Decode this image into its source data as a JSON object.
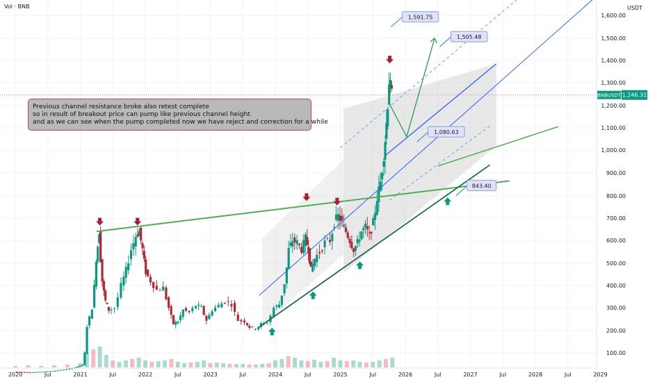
{
  "header": {
    "volume_label": "Vol · BNB",
    "currency": "USDT"
  },
  "price_badge": {
    "symbol": "BNBUSDT",
    "value": "1,246.31",
    "color": "#089981"
  },
  "annotation": {
    "lines": [
      "Previous channel resistance broke also retest complete",
      "so in result of breakout price can pump like previous channel height",
      "and as we can see when the pump completed now we have reject and correction for a while"
    ]
  },
  "level_labels": [
    {
      "text": "1,591.75",
      "x": 2025.95,
      "y": 1591.75
    },
    {
      "text": "1,505.48",
      "x": 2026.7,
      "y": 1505.48
    },
    {
      "text": "1,080.63",
      "x": 2026.35,
      "y": 1080.63
    },
    {
      "text": "843.40",
      "x": 2026.95,
      "y": 843.4
    }
  ],
  "chart_data": {
    "type": "candlestick",
    "y_scale": "log",
    "y_ticks": [
      "100.00",
      "200.00",
      "300.00",
      "400.00",
      "500.00",
      "600.00",
      "700.00",
      "800.00",
      "900.00",
      "1,000.00",
      "1,100.00",
      "1,200.00",
      "1,300.00",
      "1,400.00",
      "1,500.00",
      "1,600.00"
    ],
    "y_tick_values": [
      100,
      200,
      300,
      400,
      500,
      600,
      700,
      800,
      900,
      1000,
      1100,
      1200,
      1300,
      1400,
      1500,
      1600
    ],
    "x_ticks": [
      "2020",
      "Jul",
      "2021",
      "Jul",
      "2022",
      "Jul",
      "2023",
      "Jul",
      "2024",
      "Jul",
      "2025",
      "Jul",
      "2026",
      "Jul",
      "2027",
      "Jul",
      "2028",
      "Jul",
      "2029"
    ],
    "x_tick_values": [
      2020,
      2020.5,
      2021,
      2021.5,
      2022,
      2022.5,
      2023,
      2023.5,
      2024,
      2024.5,
      2025,
      2025.5,
      2026,
      2026.5,
      2027,
      2027.5,
      2028,
      2028.5,
      2029
    ],
    "current_price": 1246.31,
    "price_path": [
      [
        2020.0,
        15
      ],
      [
        2020.25,
        12
      ],
      [
        2020.55,
        17
      ],
      [
        2020.85,
        28
      ],
      [
        2021.05,
        45
      ],
      [
        2021.12,
        220
      ],
      [
        2021.2,
        300
      ],
      [
        2021.26,
        520
      ],
      [
        2021.3,
        640
      ],
      [
        2021.35,
        420
      ],
      [
        2021.4,
        330
      ],
      [
        2021.45,
        290
      ],
      [
        2021.55,
        300
      ],
      [
        2021.65,
        400
      ],
      [
        2021.72,
        470
      ],
      [
        2021.8,
        560
      ],
      [
        2021.87,
        620
      ],
      [
        2021.92,
        640
      ],
      [
        2021.97,
        560
      ],
      [
        2022.02,
        460
      ],
      [
        2022.1,
        420
      ],
      [
        2022.2,
        380
      ],
      [
        2022.3,
        390
      ],
      [
        2022.38,
        300
      ],
      [
        2022.45,
        230
      ],
      [
        2022.52,
        240
      ],
      [
        2022.6,
        290
      ],
      [
        2022.7,
        280
      ],
      [
        2022.8,
        310
      ],
      [
        2022.88,
        300
      ],
      [
        2022.96,
        245
      ],
      [
        2023.05,
        290
      ],
      [
        2023.15,
        310
      ],
      [
        2023.25,
        330
      ],
      [
        2023.35,
        315
      ],
      [
        2023.45,
        245
      ],
      [
        2023.55,
        240
      ],
      [
        2023.62,
        215
      ],
      [
        2023.72,
        210
      ],
      [
        2023.8,
        228
      ],
      [
        2023.9,
        235
      ],
      [
        2024.0,
        300
      ],
      [
        2024.08,
        315
      ],
      [
        2024.16,
        410
      ],
      [
        2024.22,
        560
      ],
      [
        2024.28,
        600
      ],
      [
        2024.35,
        590
      ],
      [
        2024.42,
        560
      ],
      [
        2024.48,
        610
      ],
      [
        2024.52,
        560
      ],
      [
        2024.56,
        470
      ],
      [
        2024.62,
        520
      ],
      [
        2024.7,
        550
      ],
      [
        2024.78,
        590
      ],
      [
        2024.86,
        600
      ],
      [
        2024.92,
        680
      ],
      [
        2024.98,
        710
      ],
      [
        2025.04,
        680
      ],
      [
        2025.1,
        640
      ],
      [
        2025.16,
        600
      ],
      [
        2025.22,
        560
      ],
      [
        2025.28,
        590
      ],
      [
        2025.34,
        640
      ],
      [
        2025.4,
        660
      ],
      [
        2025.46,
        620
      ],
      [
        2025.52,
        680
      ],
      [
        2025.58,
        790
      ],
      [
        2025.63,
        860
      ],
      [
        2025.68,
        980
      ],
      [
        2025.72,
        1120
      ],
      [
        2025.76,
        1310
      ],
      [
        2025.8,
        1246
      ]
    ],
    "volume": [
      [
        2020.0,
        2
      ],
      [
        2020.2,
        3
      ],
      [
        2020.4,
        2
      ],
      [
        2020.6,
        3
      ],
      [
        2020.8,
        4
      ],
      [
        2021.0,
        6
      ],
      [
        2021.1,
        22
      ],
      [
        2021.2,
        26
      ],
      [
        2021.3,
        30
      ],
      [
        2021.4,
        18
      ],
      [
        2021.5,
        10
      ],
      [
        2021.6,
        8
      ],
      [
        2021.7,
        10
      ],
      [
        2021.8,
        12
      ],
      [
        2021.9,
        14
      ],
      [
        2022.0,
        10
      ],
      [
        2022.1,
        8
      ],
      [
        2022.2,
        9
      ],
      [
        2022.3,
        10
      ],
      [
        2022.4,
        12
      ],
      [
        2022.5,
        8
      ],
      [
        2022.6,
        6
      ],
      [
        2022.7,
        7
      ],
      [
        2022.8,
        8
      ],
      [
        2022.9,
        10
      ],
      [
        2023.0,
        6
      ],
      [
        2023.1,
        7
      ],
      [
        2023.2,
        6
      ],
      [
        2023.3,
        5
      ],
      [
        2023.4,
        5
      ],
      [
        2023.5,
        5
      ],
      [
        2023.6,
        4
      ],
      [
        2023.7,
        4
      ],
      [
        2023.8,
        5
      ],
      [
        2023.9,
        6
      ],
      [
        2024.0,
        10
      ],
      [
        2024.1,
        12
      ],
      [
        2024.2,
        16
      ],
      [
        2024.3,
        14
      ],
      [
        2024.4,
        10
      ],
      [
        2024.5,
        9
      ],
      [
        2024.6,
        11
      ],
      [
        2024.7,
        8
      ],
      [
        2024.8,
        9
      ],
      [
        2024.9,
        14
      ],
      [
        2025.0,
        10
      ],
      [
        2025.1,
        9
      ],
      [
        2025.2,
        10
      ],
      [
        2025.3,
        8
      ],
      [
        2025.4,
        7
      ],
      [
        2025.5,
        8
      ],
      [
        2025.6,
        10
      ],
      [
        2025.7,
        12
      ],
      [
        2025.8,
        14
      ]
    ],
    "resistance_line": {
      "from": [
        2021.25,
        640
      ],
      "to": [
        2027.6,
        865
      ],
      "color": "#4caf50"
    },
    "channel_support": {
      "from": [
        2023.75,
        215
      ],
      "to": [
        2027.3,
        935
      ],
      "color": "#1b6e48"
    },
    "support_extension": {
      "from": [
        2026.5,
        930
      ],
      "to": [
        2028.35,
        1105
      ],
      "color": "#4caf50"
    },
    "channel_upper": {
      "from": [
        2023.75,
        355
      ],
      "to": [
        2029.0,
        1700
      ],
      "color": "#2962ff"
    },
    "breakout_line": {
      "from": [
        2025.7,
        978
      ],
      "to": [
        2027.4,
        1385
      ],
      "color": "#2962ff"
    },
    "dashed_midlines": [
      {
        "from": [
          2025.0,
          1010
        ],
        "to": [
          2029.0,
          1980
        ]
      },
      {
        "from": [
          2025.75,
          780
        ],
        "to": [
          2027.3,
          1108
        ]
      }
    ],
    "shaded_channel": [
      [
        2025.05,
        1185
      ],
      [
        2027.4,
        1385
      ],
      [
        2027.4,
        1020
      ],
      [
        2025.05,
        455
      ]
    ],
    "shaded_prev_channel": [
      [
        2023.8,
        610
      ],
      [
        2025.05,
        960
      ],
      [
        2025.05,
        540
      ],
      [
        2023.8,
        220
      ]
    ],
    "projection_path": [
      [
        2025.76,
        1205
      ],
      [
        2026.02,
        1060
      ],
      [
        2026.45,
        1500
      ]
    ],
    "down_markers": [
      {
        "x": 2021.3,
        "y": 670
      },
      {
        "x": 2021.88,
        "y": 670
      },
      {
        "x": 2024.48,
        "y": 780
      },
      {
        "x": 2024.95,
        "y": 760
      },
      {
        "x": 2025.76,
        "y": 1390
      }
    ],
    "up_markers": [
      {
        "x": 2023.95,
        "y": 210
      },
      {
        "x": 2024.58,
        "y": 370
      },
      {
        "x": 2025.3,
        "y": 505
      },
      {
        "x": 2026.65,
        "y": 790
      }
    ]
  }
}
